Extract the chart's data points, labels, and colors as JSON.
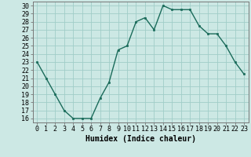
{
  "x": [
    0,
    1,
    2,
    3,
    4,
    5,
    6,
    7,
    8,
    9,
    10,
    11,
    12,
    13,
    14,
    15,
    16,
    17,
    18,
    19,
    20,
    21,
    22,
    23
  ],
  "y": [
    23,
    21,
    19,
    17,
    16,
    16,
    16,
    18.5,
    20.5,
    24.5,
    25,
    28,
    28.5,
    27,
    30,
    29.5,
    29.5,
    29.5,
    27.5,
    26.5,
    26.5,
    25,
    23,
    21.5
  ],
  "line_color": "#1a6b5a",
  "marker_color": "#1a6b5a",
  "bg_color": "#cce8e4",
  "grid_color": "#a0cdc8",
  "xlabel": "Humidex (Indice chaleur)",
  "xlim": [
    -0.5,
    23.5
  ],
  "ylim": [
    15.5,
    30.5
  ],
  "yticks": [
    16,
    17,
    18,
    19,
    20,
    21,
    22,
    23,
    24,
    25,
    26,
    27,
    28,
    29,
    30
  ],
  "xticks": [
    0,
    1,
    2,
    3,
    4,
    5,
    6,
    7,
    8,
    9,
    10,
    11,
    12,
    13,
    14,
    15,
    16,
    17,
    18,
    19,
    20,
    21,
    22,
    23
  ],
  "tick_fontsize": 6,
  "label_fontsize": 7
}
